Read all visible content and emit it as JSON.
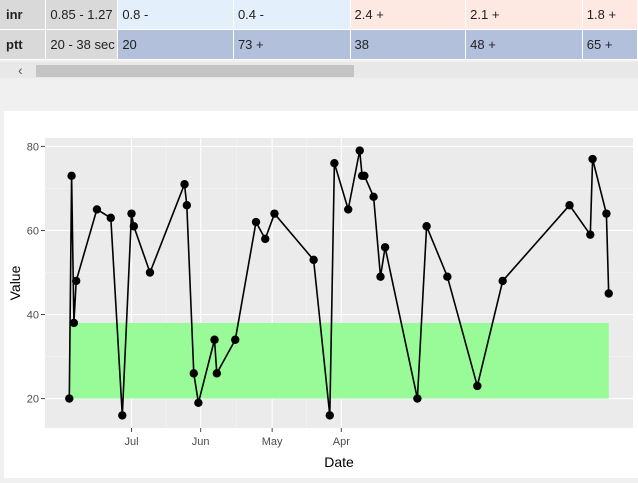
{
  "lab_table": {
    "rows": [
      {
        "name": "inr",
        "range": "0.85 - 1.27",
        "cells": [
          {
            "text": "0.8 -",
            "color": "#e3f0fc"
          },
          {
            "text": "0.4 -",
            "color": "#e3f0fc"
          },
          {
            "text": "2.4 +",
            "color": "#fde8e2"
          },
          {
            "text": "2.1 +",
            "color": "#fde8e2"
          },
          {
            "text": "1.8 +",
            "color": "#fde8e2"
          }
        ]
      },
      {
        "name": "ptt",
        "range": "20 - 38 sec",
        "cells": [
          {
            "text": "20",
            "color": "#b2c0dc"
          },
          {
            "text": "73 +",
            "color": "#b2c0dc"
          },
          {
            "text": "38",
            "color": "#b2c0dc"
          },
          {
            "text": "48 +",
            "color": "#b2c0dc"
          },
          {
            "text": "65 +",
            "color": "#b2c0dc"
          }
        ]
      }
    ],
    "scroll_left_icon": "arrow-left-icon"
  },
  "chart_data": {
    "type": "line",
    "xlabel": "Date",
    "ylabel": "Value",
    "x_ticks": [
      "Jul",
      "Jun",
      "May",
      "Apr"
    ],
    "y_ticks": [
      20,
      40,
      60,
      80
    ],
    "ylim": [
      13,
      82
    ],
    "x_axis_reversed": true,
    "normal_range": {
      "low": 20,
      "high": 38,
      "color": "#98fb98"
    },
    "grid": true,
    "panel_background": "#ebebeb",
    "line_color": "#000000",
    "series": [
      {
        "points": [
          {
            "x": "2023-07-28",
            "y": 20
          },
          {
            "x": "2023-07-27",
            "y": 73
          },
          {
            "x": "2023-07-26",
            "y": 38
          },
          {
            "x": "2023-07-25",
            "y": 48
          },
          {
            "x": "2023-07-16",
            "y": 65
          },
          {
            "x": "2023-07-10",
            "y": 63
          },
          {
            "x": "2023-07-05",
            "y": 16
          },
          {
            "x": "2023-07-01",
            "y": 64
          },
          {
            "x": "2023-06-30",
            "y": 61
          },
          {
            "x": "2023-06-23",
            "y": 50
          },
          {
            "x": "2023-06-08",
            "y": 71
          },
          {
            "x": "2023-06-07",
            "y": 66
          },
          {
            "x": "2023-06-04",
            "y": 26
          },
          {
            "x": "2023-06-02",
            "y": 19
          },
          {
            "x": "2023-05-26",
            "y": 34
          },
          {
            "x": "2023-05-25",
            "y": 26
          },
          {
            "x": "2023-05-17",
            "y": 34
          },
          {
            "x": "2023-05-08",
            "y": 62
          },
          {
            "x": "2023-05-04",
            "y": 58
          },
          {
            "x": "2023-04-30",
            "y": 64
          },
          {
            "x": "2023-04-13",
            "y": 53
          },
          {
            "x": "2023-04-06",
            "y": 16
          },
          {
            "x": "2023-04-04",
            "y": 76
          },
          {
            "x": "2023-03-29",
            "y": 65
          },
          {
            "x": "2023-03-24",
            "y": 79
          },
          {
            "x": "2023-03-23",
            "y": 73
          },
          {
            "x": "2023-03-22",
            "y": 73
          },
          {
            "x": "2023-03-18",
            "y": 68
          },
          {
            "x": "2023-03-15",
            "y": 49
          },
          {
            "x": "2023-03-13",
            "y": 56
          },
          {
            "x": "2023-02-27",
            "y": 20
          },
          {
            "x": "2023-02-23",
            "y": 61
          },
          {
            "x": "2023-02-14",
            "y": 49
          },
          {
            "x": "2023-02-01",
            "y": 23
          },
          {
            "x": "2023-01-21",
            "y": 48
          },
          {
            "x": "2022-12-23",
            "y": 66
          },
          {
            "x": "2022-12-14",
            "y": 59
          },
          {
            "x": "2022-12-13",
            "y": 77
          },
          {
            "x": "2022-12-07",
            "y": 64
          },
          {
            "x": "2022-12-06",
            "y": 45
          }
        ]
      }
    ]
  }
}
